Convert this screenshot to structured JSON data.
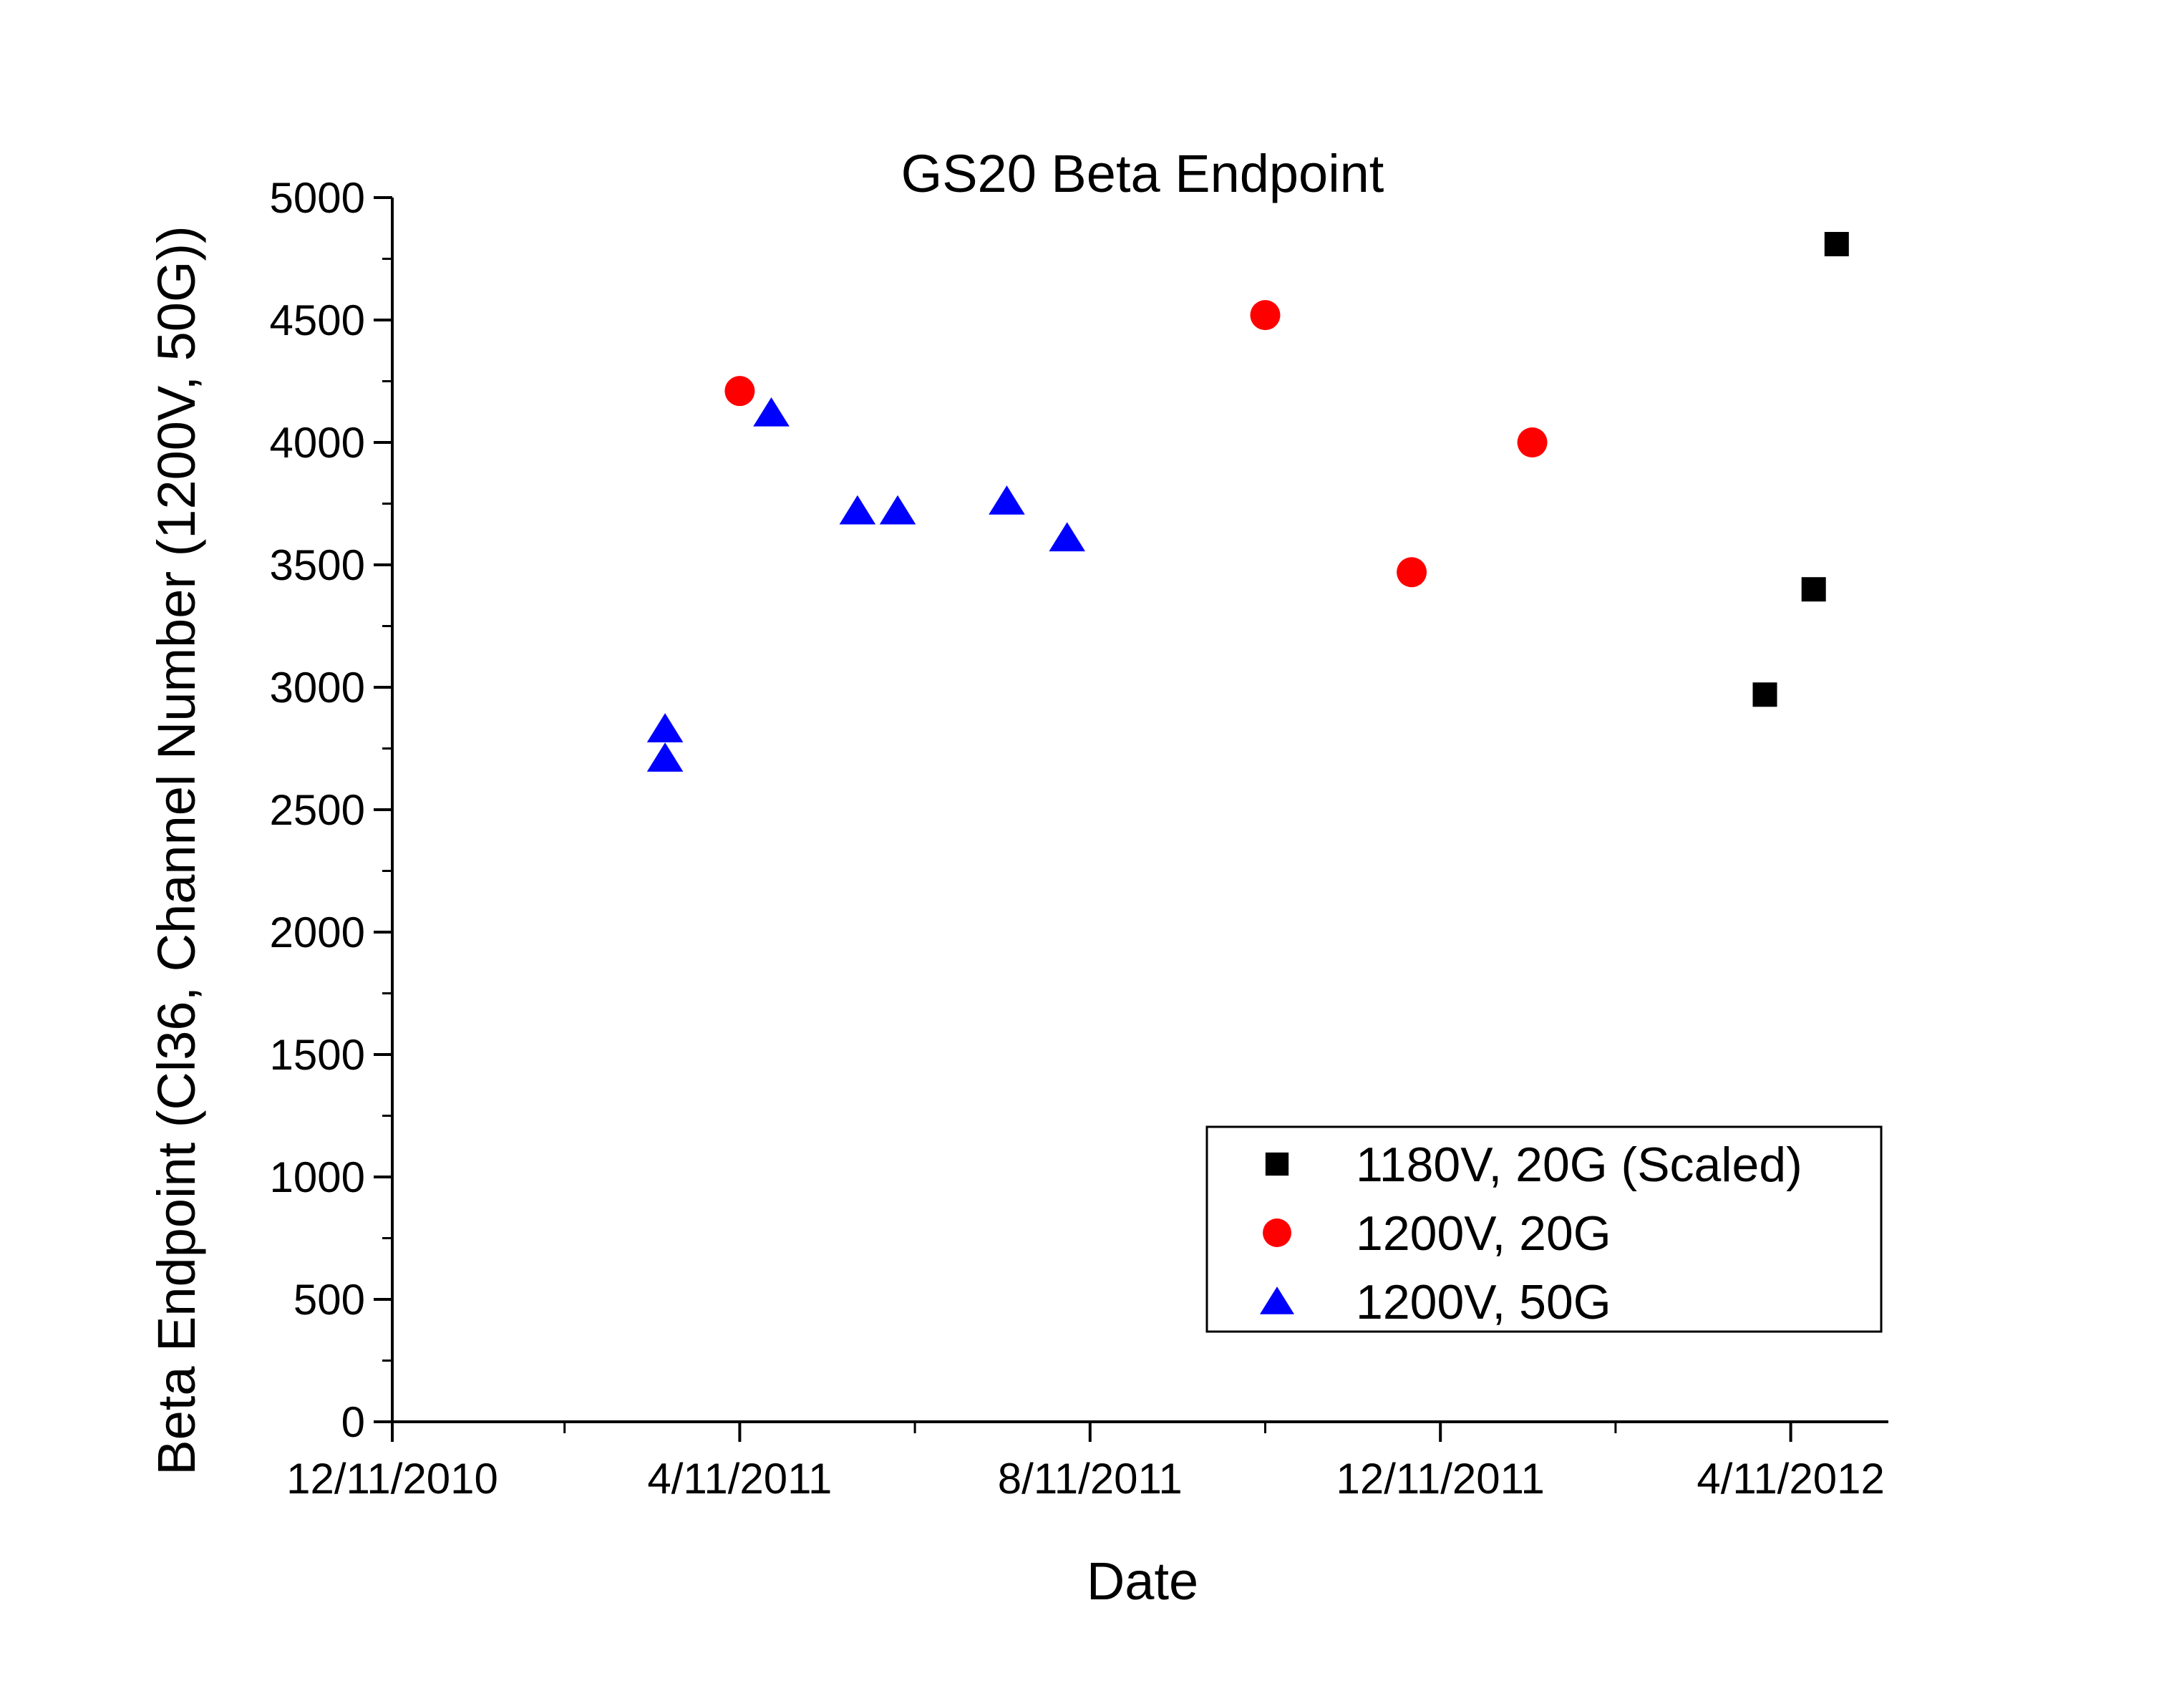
{
  "chart_data": {
    "type": "scatter",
    "title": "GS20 Beta Endpoint",
    "xlabel": "Date",
    "ylabel": "Beta Endpoint (Cl36, Channel Number (1200V, 50G))",
    "x_type": "date",
    "xlim": [
      "2010-12-11",
      "2012-05-15"
    ],
    "ylim": [
      0,
      5000
    ],
    "x_ticks": [
      "2010-12-11",
      "2011-04-11",
      "2011-08-11",
      "2011-12-11",
      "2012-04-11"
    ],
    "x_tick_labels": [
      "12/11/2010",
      "4/11/2011",
      "8/11/2011",
      "12/11/2011",
      "4/11/2012"
    ],
    "y_ticks": [
      0,
      500,
      1000,
      1500,
      2000,
      2500,
      3000,
      3500,
      4000,
      4500,
      5000
    ],
    "y_tick_labels": [
      "0",
      "500",
      "1000",
      "1500",
      "2000",
      "2500",
      "3000",
      "3500",
      "4000",
      "4500",
      "5000"
    ],
    "grid": false,
    "legend_position": "bottom-right",
    "series": [
      {
        "name": "1180V, 20G (Scaled)",
        "marker": "square",
        "color": "#000000",
        "points": [
          {
            "x": "2012-04-02",
            "y": 2970
          },
          {
            "x": "2012-04-19",
            "y": 3400
          },
          {
            "x": "2012-04-27",
            "y": 4810
          }
        ]
      },
      {
        "name": "1200V, 20G",
        "marker": "circle",
        "color": "#ff0000",
        "points": [
          {
            "x": "2011-04-11",
            "y": 4210
          },
          {
            "x": "2011-10-11",
            "y": 4520
          },
          {
            "x": "2011-12-01",
            "y": 3470
          },
          {
            "x": "2012-01-12",
            "y": 4000
          }
        ]
      },
      {
        "name": "1200V, 50G",
        "marker": "triangle",
        "color": "#0000ff",
        "points": [
          {
            "x": "2011-03-16",
            "y": 2830
          },
          {
            "x": "2011-03-16",
            "y": 2710
          },
          {
            "x": "2011-04-22",
            "y": 4120
          },
          {
            "x": "2011-05-22",
            "y": 3720
          },
          {
            "x": "2011-06-05",
            "y": 3720
          },
          {
            "x": "2011-07-13",
            "y": 3760
          },
          {
            "x": "2011-08-03",
            "y": 3610
          }
        ]
      }
    ]
  }
}
